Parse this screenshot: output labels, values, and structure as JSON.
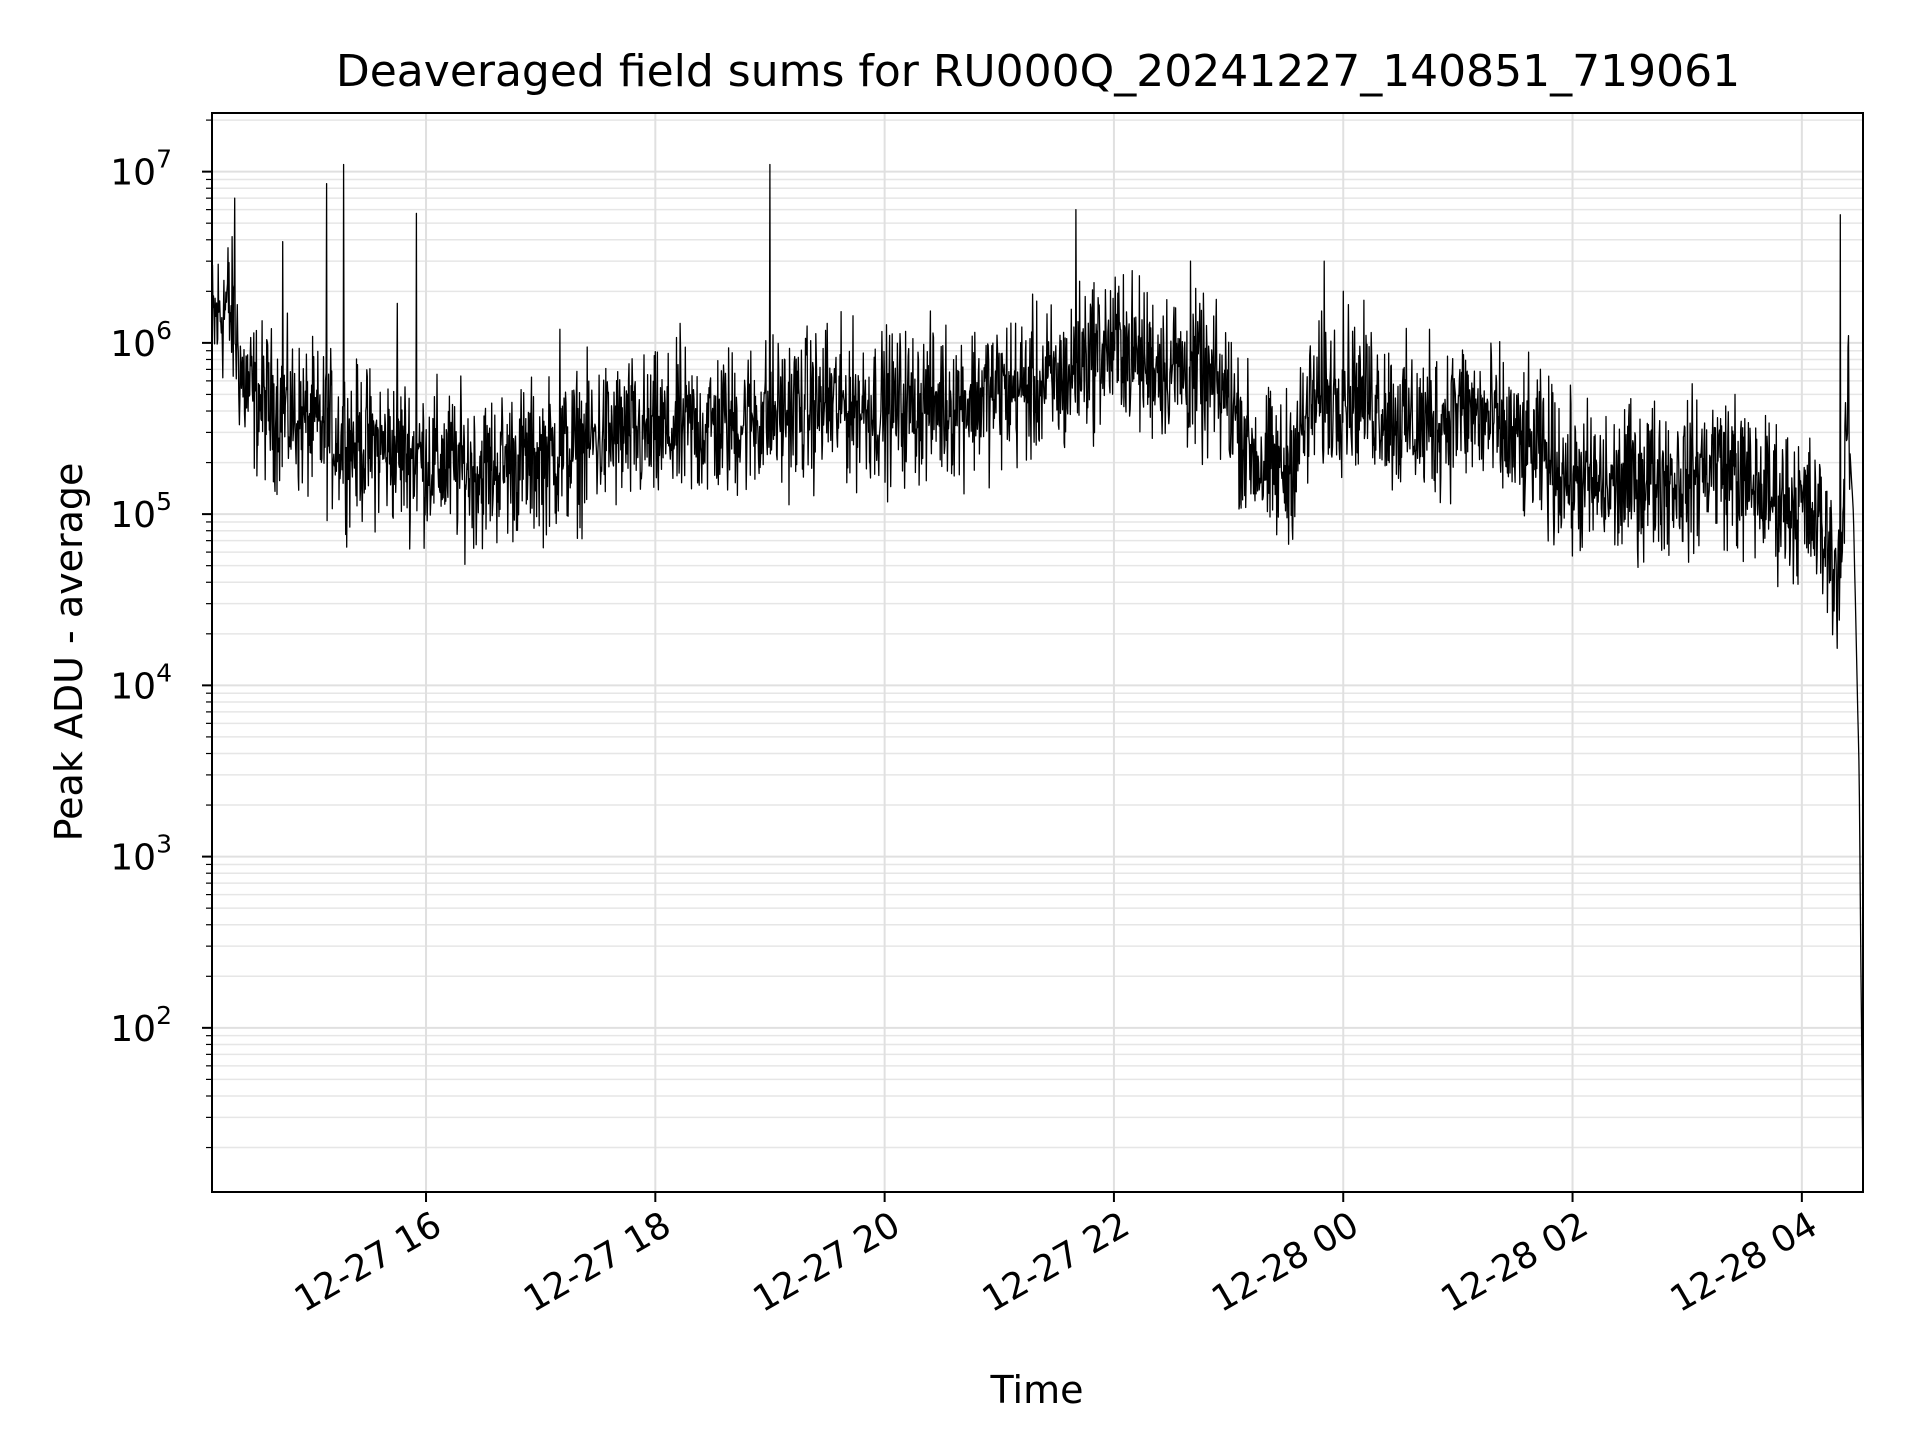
{
  "chart_data": {
    "type": "line",
    "title": "Deaveraged field sums for RU000Q_20241227_140851_719061",
    "xlabel": "Time",
    "ylabel": "Peak ADU - average",
    "y_scale": "log",
    "grid": true,
    "line_color": "#000000",
    "x_range": [
      "2024-12-27 14:08",
      "2024-12-28 04:32"
    ],
    "y_range": [
      11,
      22000000
    ],
    "x_ticks": [
      {
        "value": "2024-12-27 16:00",
        "label": "12-27 16"
      },
      {
        "value": "2024-12-27 18:00",
        "label": "12-27 18"
      },
      {
        "value": "2024-12-27 20:00",
        "label": "12-27 20"
      },
      {
        "value": "2024-12-27 22:00",
        "label": "12-27 22"
      },
      {
        "value": "2024-12-28 00:00",
        "label": "12-28 00"
      },
      {
        "value": "2024-12-28 02:00",
        "label": "12-28 02"
      },
      {
        "value": "2024-12-28 04:00",
        "label": "12-28 04"
      }
    ],
    "y_ticks": [
      {
        "value": 100,
        "base": "10",
        "exp": "2"
      },
      {
        "value": 1000,
        "base": "10",
        "exp": "3"
      },
      {
        "value": 10000,
        "base": "10",
        "exp": "4"
      },
      {
        "value": 100000,
        "base": "10",
        "exp": "5"
      },
      {
        "value": 1000000,
        "base": "10",
        "exp": "6"
      },
      {
        "value": 10000000,
        "base": "10",
        "exp": "7"
      }
    ],
    "series": [
      {
        "x": [
          "2024-12-27 14:08",
          "2024-12-27 14:12",
          "2024-12-27 14:16",
          "2024-12-27 14:20",
          "2024-12-27 14:24",
          "2024-12-27 14:30",
          "2024-12-27 14:40",
          "2024-12-27 14:50",
          "2024-12-27 15:00",
          "2024-12-27 15:10",
          "2024-12-27 15:20",
          "2024-12-27 15:30",
          "2024-12-27 15:40",
          "2024-12-27 15:50",
          "2024-12-27 16:00",
          "2024-12-27 16:15",
          "2024-12-27 16:30",
          "2024-12-27 16:45",
          "2024-12-27 17:00",
          "2024-12-27 17:15",
          "2024-12-27 17:30",
          "2024-12-27 17:45",
          "2024-12-27 18:00",
          "2024-12-27 18:20",
          "2024-12-27 18:40",
          "2024-12-27 19:00",
          "2024-12-27 19:20",
          "2024-12-27 19:40",
          "2024-12-27 20:00",
          "2024-12-27 20:20",
          "2024-12-27 20:40",
          "2024-12-27 21:00",
          "2024-12-27 21:20",
          "2024-12-27 21:35",
          "2024-12-27 21:45",
          "2024-12-27 22:00",
          "2024-12-27 22:15",
          "2024-12-27 22:30",
          "2024-12-27 22:45",
          "2024-12-27 23:00",
          "2024-12-27 23:10",
          "2024-12-27 23:20",
          "2024-12-27 23:30",
          "2024-12-27 23:45",
          "2024-12-28 00:00",
          "2024-12-28 00:15",
          "2024-12-28 00:30",
          "2024-12-28 00:45",
          "2024-12-28 01:00",
          "2024-12-28 01:15",
          "2024-12-28 01:30",
          "2024-12-28 01:45",
          "2024-12-28 02:00",
          "2024-12-28 02:20",
          "2024-12-28 02:40",
          "2024-12-28 03:00",
          "2024-12-28 03:15",
          "2024-12-28 03:30",
          "2024-12-28 03:45",
          "2024-12-28 04:00",
          "2024-12-28 04:08",
          "2024-12-28 04:15",
          "2024-12-28 04:20",
          "2024-12-28 04:24",
          "2024-12-28 04:27",
          "2024-12-28 04:30",
          "2024-12-28 04:32"
        ],
        "y": [
          1200000,
          1500000,
          1700000,
          1200000,
          600000,
          480000,
          420000,
          380000,
          330000,
          300000,
          260000,
          250000,
          240000,
          230000,
          210000,
          190000,
          180000,
          200000,
          210000,
          230000,
          280000,
          290000,
          290000,
          320000,
          340000,
          380000,
          420000,
          430000,
          420000,
          440000,
          460000,
          520000,
          560000,
          600000,
          850000,
          950000,
          800000,
          750000,
          600000,
          500000,
          250000,
          180000,
          180000,
          450000,
          550000,
          480000,
          350000,
          320000,
          420000,
          350000,
          260000,
          220000,
          160000,
          140000,
          170000,
          160000,
          210000,
          150000,
          130000,
          110000,
          90000,
          60000,
          40000,
          400000,
          100000,
          3000,
          11
        ],
        "noise": 0.62,
        "spikes": [
          {
            "x": "2024-12-27 14:20",
            "y": 7000000
          },
          {
            "x": "2024-12-27 14:45",
            "y": 3900000
          },
          {
            "x": "2024-12-27 15:08",
            "y": 8500000
          },
          {
            "x": "2024-12-27 15:17",
            "y": 11000000
          },
          {
            "x": "2024-12-27 15:45",
            "y": 1700000
          },
          {
            "x": "2024-12-27 15:55",
            "y": 5700000
          },
          {
            "x": "2024-12-27 17:10",
            "y": 1200000
          },
          {
            "x": "2024-12-27 18:13",
            "y": 1300000
          },
          {
            "x": "2024-12-27 19:00",
            "y": 11000000
          },
          {
            "x": "2024-12-27 19:30",
            "y": 1300000
          },
          {
            "x": "2024-12-27 21:40",
            "y": 6000000
          },
          {
            "x": "2024-12-27 22:05",
            "y": 2500000
          },
          {
            "x": "2024-12-27 22:40",
            "y": 3000000
          },
          {
            "x": "2024-12-27 22:45",
            "y": 1700000
          },
          {
            "x": "2024-12-27 23:50",
            "y": 3000000
          },
          {
            "x": "2024-12-28 00:00",
            "y": 2000000
          },
          {
            "x": "2024-12-28 00:45",
            "y": 1200000
          },
          {
            "x": "2024-12-28 03:25",
            "y": 500000
          },
          {
            "x": "2024-12-28 04:20",
            "y": 5600000
          }
        ]
      }
    ]
  }
}
